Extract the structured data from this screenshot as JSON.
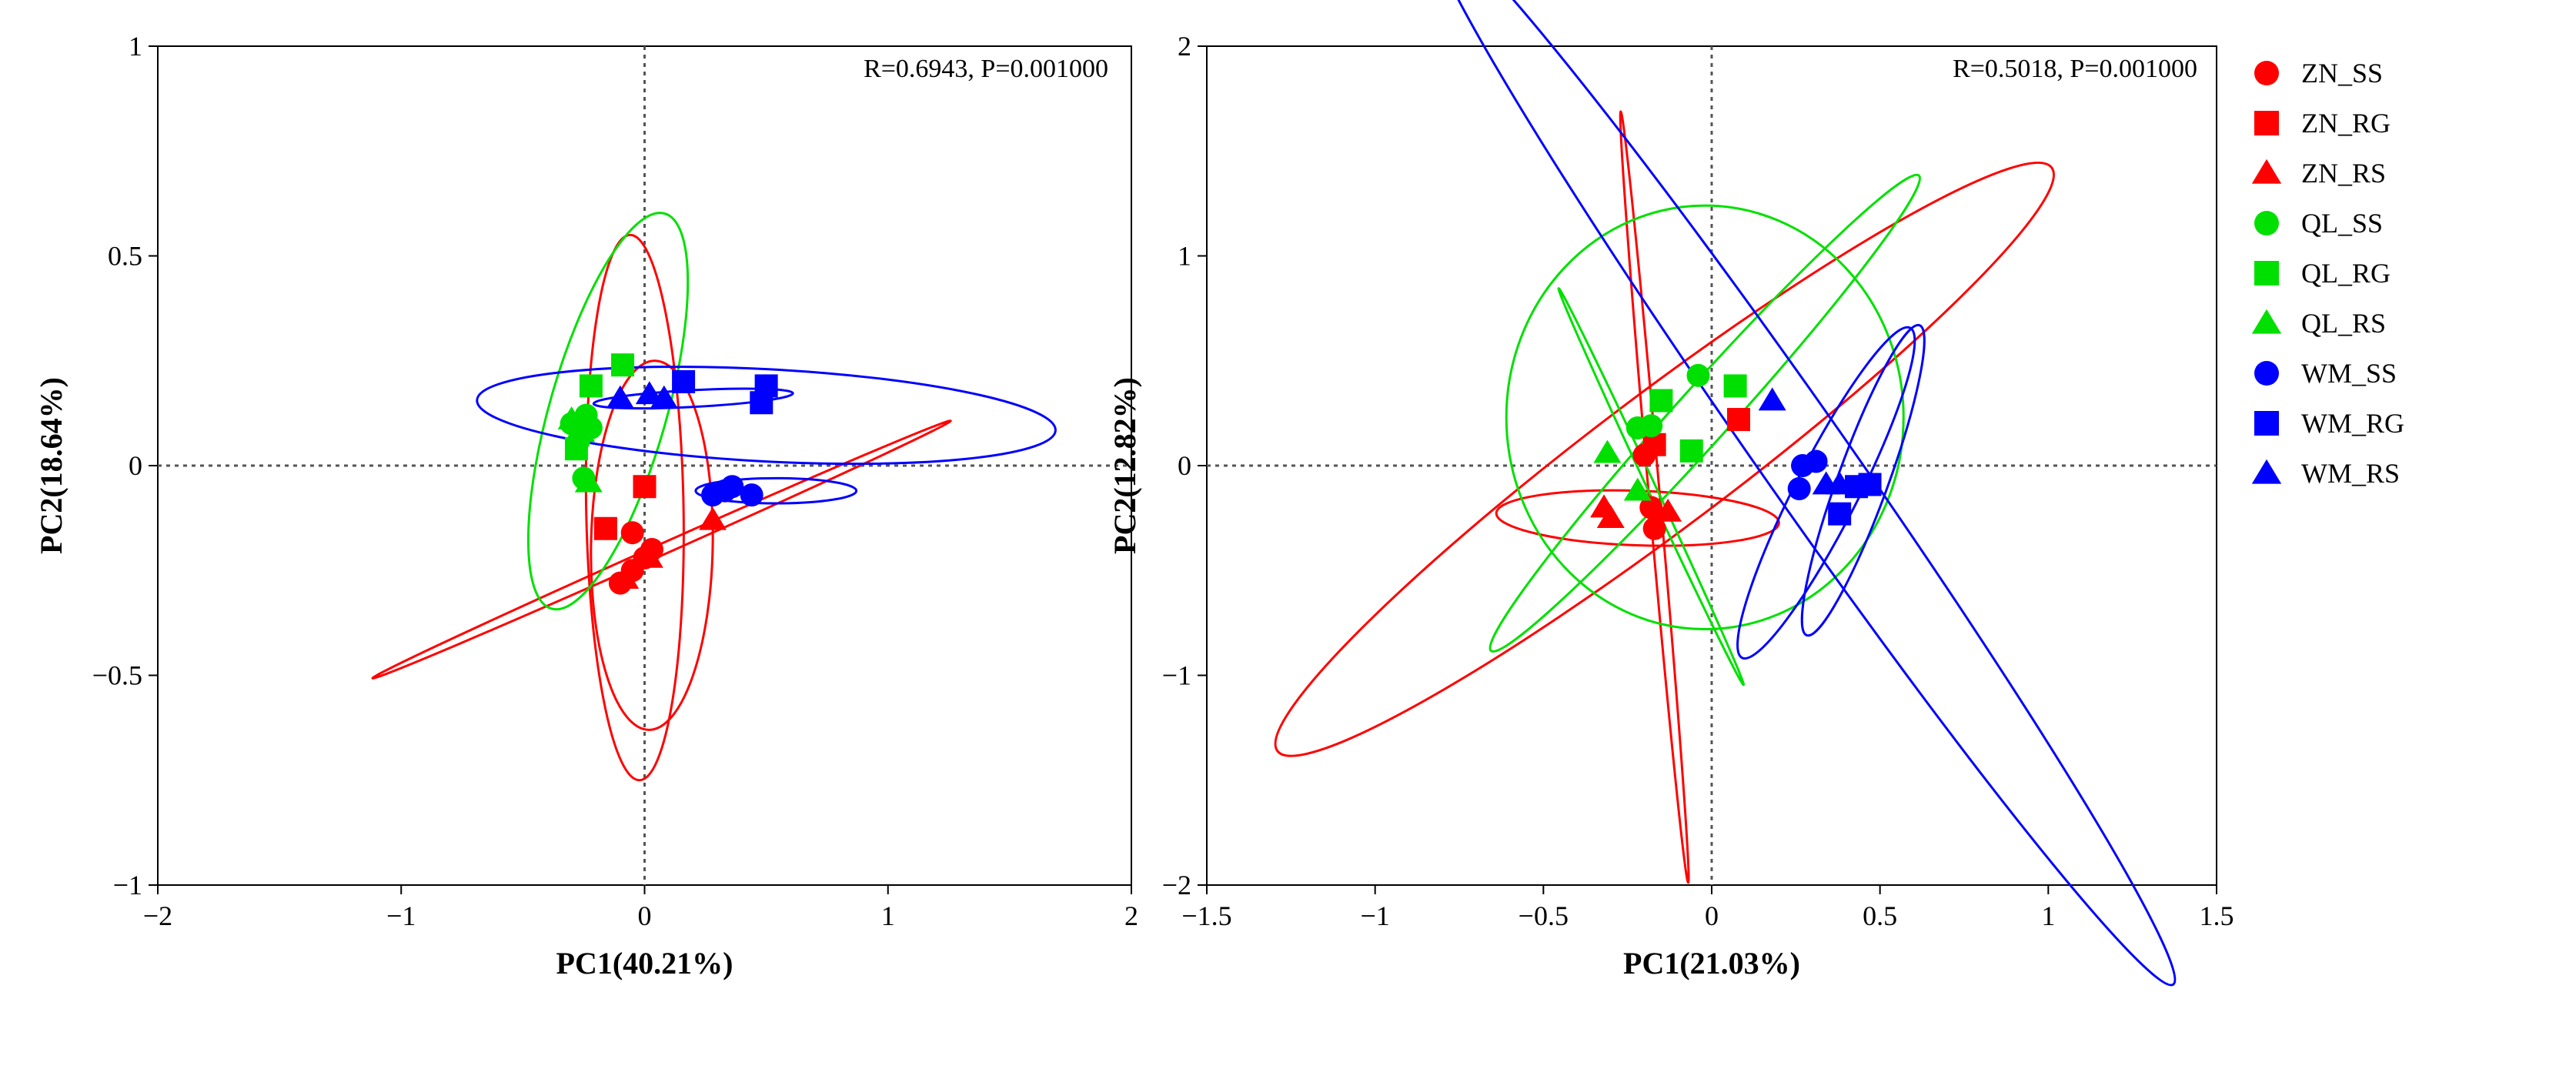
{
  "chart_data": [
    {
      "type": "scatter",
      "panel": "left",
      "stat_text": "R=0.6943, P=0.001000",
      "xlabel": "PC1(40.21%)",
      "ylabel": "PC2(18.64%)",
      "xlim": [
        -2,
        2
      ],
      "ylim": [
        -1,
        1
      ],
      "xticks": [
        -2,
        -1,
        0,
        1,
        2
      ],
      "xtick_labels": [
        "−2",
        "−1",
        "0",
        "1",
        "2"
      ],
      "yticks": [
        -1,
        -0.5,
        0,
        0.5,
        1
      ],
      "ytick_labels": [
        "−1",
        "−0.5",
        "0",
        "0.5",
        "1"
      ],
      "reference_lines": {
        "x": 0,
        "y": 0,
        "style": "dotted"
      },
      "series": [
        {
          "name": "ZN_SS",
          "points": [
            [
              -0.05,
              -0.16
            ],
            [
              0.03,
              -0.2
            ],
            [
              -0.1,
              -0.28
            ],
            [
              -0.05,
              -0.25
            ],
            [
              0.0,
              -0.22
            ]
          ]
        },
        {
          "name": "ZN_RG",
          "points": [
            [
              -0.16,
              -0.15
            ],
            [
              0.0,
              -0.05
            ]
          ]
        },
        {
          "name": "ZN_RS",
          "points": [
            [
              -0.08,
              -0.27
            ],
            [
              0.02,
              -0.22
            ],
            [
              0.28,
              -0.13
            ]
          ]
        },
        {
          "name": "QL_SS",
          "points": [
            [
              -0.27,
              0.06
            ],
            [
              -0.24,
              0.12
            ],
            [
              -0.22,
              0.09
            ],
            [
              -0.25,
              -0.03
            ],
            [
              -0.3,
              0.1
            ]
          ]
        },
        {
          "name": "QL_RG",
          "points": [
            [
              -0.22,
              0.19
            ],
            [
              -0.09,
              0.24
            ],
            [
              -0.28,
              0.04
            ]
          ]
        },
        {
          "name": "QL_RS",
          "points": [
            [
              -0.3,
              0.11
            ],
            [
              -0.26,
              0.08
            ],
            [
              -0.23,
              -0.04
            ]
          ]
        },
        {
          "name": "WM_SS",
          "points": [
            [
              0.28,
              -0.07
            ],
            [
              0.36,
              -0.05
            ],
            [
              0.44,
              -0.07
            ],
            [
              0.33,
              -0.06
            ]
          ]
        },
        {
          "name": "WM_RG",
          "points": [
            [
              0.16,
              0.2
            ],
            [
              0.5,
              0.19
            ],
            [
              0.48,
              0.15
            ]
          ]
        },
        {
          "name": "WM_RS",
          "points": [
            [
              -0.1,
              0.16
            ],
            [
              0.02,
              0.17
            ],
            [
              0.08,
              0.16
            ]
          ]
        }
      ],
      "ellipses": [
        {
          "group": "ZN",
          "cx": -0.04,
          "cy": -0.1,
          "rx": 0.2,
          "ry": 0.65,
          "angle_deg": 1
        },
        {
          "group": "ZN",
          "cx": 0.03,
          "cy": -0.19,
          "rx": 0.25,
          "ry": 0.44,
          "angle_deg": -1
        },
        {
          "group": "ZN",
          "cx": 0.07,
          "cy": -0.2,
          "rx": 1.3,
          "ry": 0.013,
          "angle_deg": 24
        },
        {
          "group": "QL",
          "cx": -0.15,
          "cy": 0.13,
          "rx": 0.24,
          "ry": 0.49,
          "angle_deg": -16
        },
        {
          "group": "WM",
          "cx": 0.5,
          "cy": 0.12,
          "rx": 1.19,
          "ry": 0.11,
          "angle_deg": -3
        },
        {
          "group": "WM",
          "cx": 0.54,
          "cy": -0.06,
          "rx": 0.33,
          "ry": 0.03,
          "angle_deg": 0
        },
        {
          "group": "WM",
          "cx": 0.2,
          "cy": 0.16,
          "rx": 0.41,
          "ry": 0.02,
          "angle_deg": 3
        }
      ]
    },
    {
      "type": "scatter",
      "panel": "right",
      "stat_text": "R=0.5018, P=0.001000",
      "xlabel": "PC1(21.03%)",
      "ylabel": "PC2(12.82%)",
      "xlim": [
        -1.5,
        1.5
      ],
      "ylim": [
        -2,
        2
      ],
      "xticks": [
        -1.5,
        -1,
        -0.5,
        0,
        0.5,
        1,
        1.5
      ],
      "xtick_labels": [
        "−1.5",
        "−1",
        "−0.5",
        "0",
        "0.5",
        "1",
        "1.5"
      ],
      "yticks": [
        -2,
        -1,
        0,
        1,
        2
      ],
      "ytick_labels": [
        "−2",
        "−1",
        "0",
        "1",
        "2"
      ],
      "reference_lines": {
        "x": 0,
        "y": 0,
        "style": "dotted"
      },
      "series": [
        {
          "name": "ZN_SS",
          "points": [
            [
              -0.2,
              0.05
            ],
            [
              -0.18,
              -0.2
            ],
            [
              -0.17,
              -0.3
            ]
          ]
        },
        {
          "name": "ZN_RG",
          "points": [
            [
              -0.17,
              0.1
            ],
            [
              0.08,
              0.22
            ]
          ]
        },
        {
          "name": "ZN_RS",
          "points": [
            [
              -0.32,
              -0.2
            ],
            [
              -0.3,
              -0.25
            ],
            [
              -0.13,
              -0.22
            ]
          ]
        },
        {
          "name": "QL_SS",
          "points": [
            [
              -0.04,
              0.43
            ],
            [
              -0.22,
              0.18
            ],
            [
              -0.18,
              0.19
            ]
          ]
        },
        {
          "name": "QL_RG",
          "points": [
            [
              0.07,
              0.38
            ],
            [
              -0.15,
              0.31
            ],
            [
              -0.06,
              0.07
            ]
          ]
        },
        {
          "name": "QL_RS",
          "points": [
            [
              -0.31,
              0.06
            ],
            [
              -0.22,
              -0.12
            ]
          ]
        },
        {
          "name": "WM_SS",
          "points": [
            [
              0.27,
              0.0
            ],
            [
              0.31,
              0.02
            ],
            [
              0.26,
              -0.11
            ]
          ]
        },
        {
          "name": "WM_RG",
          "points": [
            [
              0.38,
              -0.23
            ],
            [
              0.43,
              -0.1
            ],
            [
              0.47,
              -0.09
            ]
          ]
        },
        {
          "name": "WM_RS",
          "points": [
            [
              0.18,
              0.31
            ],
            [
              0.34,
              -0.09
            ],
            [
              0.38,
              -0.09
            ]
          ]
        }
      ],
      "ellipses": [
        {
          "group": "ZN",
          "cx": -0.14,
          "cy": 0.03,
          "rx": 1.44,
          "ry": 0.32,
          "angle_deg": 37
        },
        {
          "group": "ZN",
          "cx": -0.22,
          "cy": -0.25,
          "rx": 0.42,
          "ry": 0.13,
          "angle_deg": -2
        },
        {
          "group": "ZN",
          "cx": -0.17,
          "cy": -0.15,
          "rx": 1.15,
          "ry": 0.026,
          "angle_deg": -85
        },
        {
          "group": "QL",
          "cx": -0.02,
          "cy": 0.23,
          "rx": 0.59,
          "ry": 1.01,
          "angle_deg": 0
        },
        {
          "group": "QL",
          "cx": -0.02,
          "cy": 0.25,
          "rx": 0.95,
          "ry": 0.13,
          "angle_deg": 48
        },
        {
          "group": "QL",
          "cx": -0.18,
          "cy": -0.1,
          "rx": 0.65,
          "ry": 0.02,
          "angle_deg": -65
        },
        {
          "group": "WM",
          "cx": 0.27,
          "cy": 0.05,
          "rx": 1.92,
          "ry": 0.21,
          "angle_deg": -55
        },
        {
          "group": "WM",
          "cx": 0.34,
          "cy": -0.13,
          "rx": 0.55,
          "ry": 0.15,
          "angle_deg": 63
        },
        {
          "group": "WM",
          "cx": 0.45,
          "cy": -0.07,
          "rx": 0.49,
          "ry": 0.12,
          "angle_deg": 70
        }
      ]
    }
  ],
  "legend": [
    {
      "name": "ZN_SS",
      "color": "#ff0000",
      "marker": "circle"
    },
    {
      "name": "ZN_RG",
      "color": "#ff0000",
      "marker": "square"
    },
    {
      "name": "ZN_RS",
      "color": "#ff0000",
      "marker": "triangle"
    },
    {
      "name": "QL_SS",
      "color": "#00e000",
      "marker": "circle"
    },
    {
      "name": "QL_RG",
      "color": "#00e000",
      "marker": "square"
    },
    {
      "name": "QL_RS",
      "color": "#00e000",
      "marker": "triangle"
    },
    {
      "name": "WM_SS",
      "color": "#0000ff",
      "marker": "circle"
    },
    {
      "name": "WM_RG",
      "color": "#0000ff",
      "marker": "square"
    },
    {
      "name": "WM_RS",
      "color": "#0000ff",
      "marker": "triangle"
    }
  ],
  "group_colors": {
    "ZN": "#ff0000",
    "QL": "#00e000",
    "WM": "#0000ff"
  }
}
